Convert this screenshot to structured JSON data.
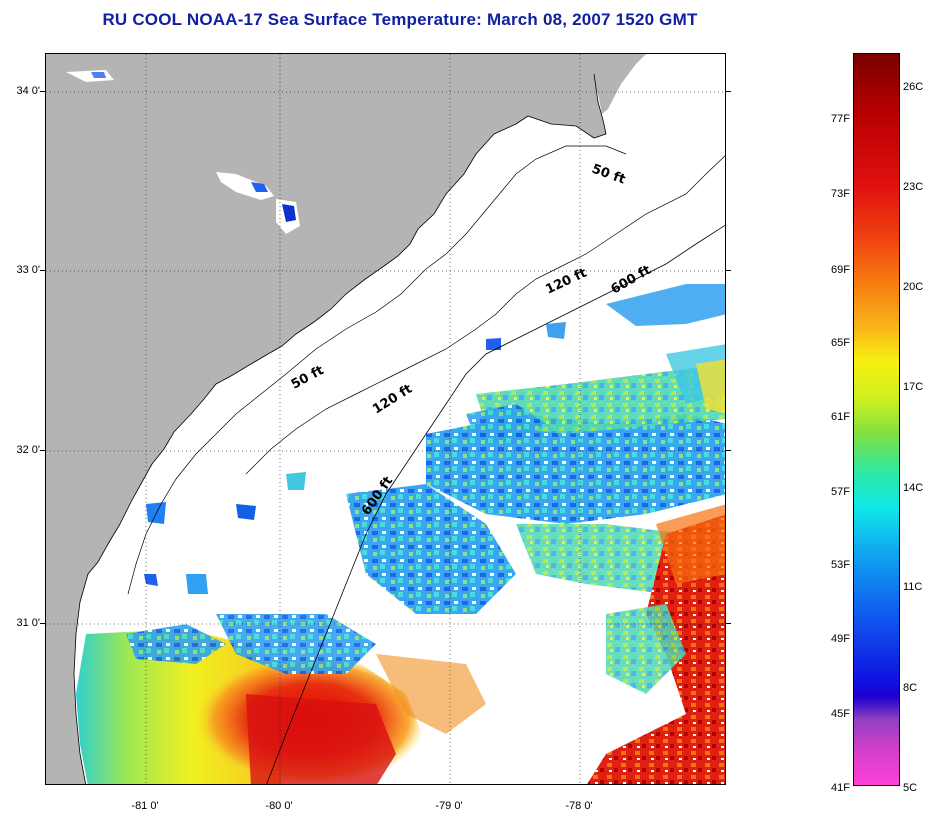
{
  "title": "RU COOL  NOAA-17  Sea Surface Temperature:  March 08, 2007 1520 GMT",
  "latitude_labels": [
    "34 0'",
    "33 0'",
    "32 0'",
    "31 0'"
  ],
  "longitude_labels": [
    "-81 0'",
    "-80 0'",
    "-79 0'",
    "-78 0'"
  ],
  "contour_labels": [
    {
      "text": "50 ft"
    },
    {
      "text": "120 ft"
    },
    {
      "text": "600 ft"
    },
    {
      "text": "50 ft"
    },
    {
      "text": "120 ft"
    },
    {
      "text": "600 ft"
    }
  ],
  "colorbar": {
    "fahrenheit": [
      "77F",
      "73F",
      "69F",
      "65F",
      "61F",
      "57F",
      "53F",
      "49F",
      "45F",
      "41F"
    ],
    "celsius": [
      "26C",
      "23C",
      "20C",
      "17C",
      "14C",
      "11C",
      "8C",
      "5C"
    ]
  },
  "colors": {
    "land": "#b4b4b4",
    "title": "#1020a0",
    "warm": "#d81010",
    "cold": "#1040f0"
  }
}
